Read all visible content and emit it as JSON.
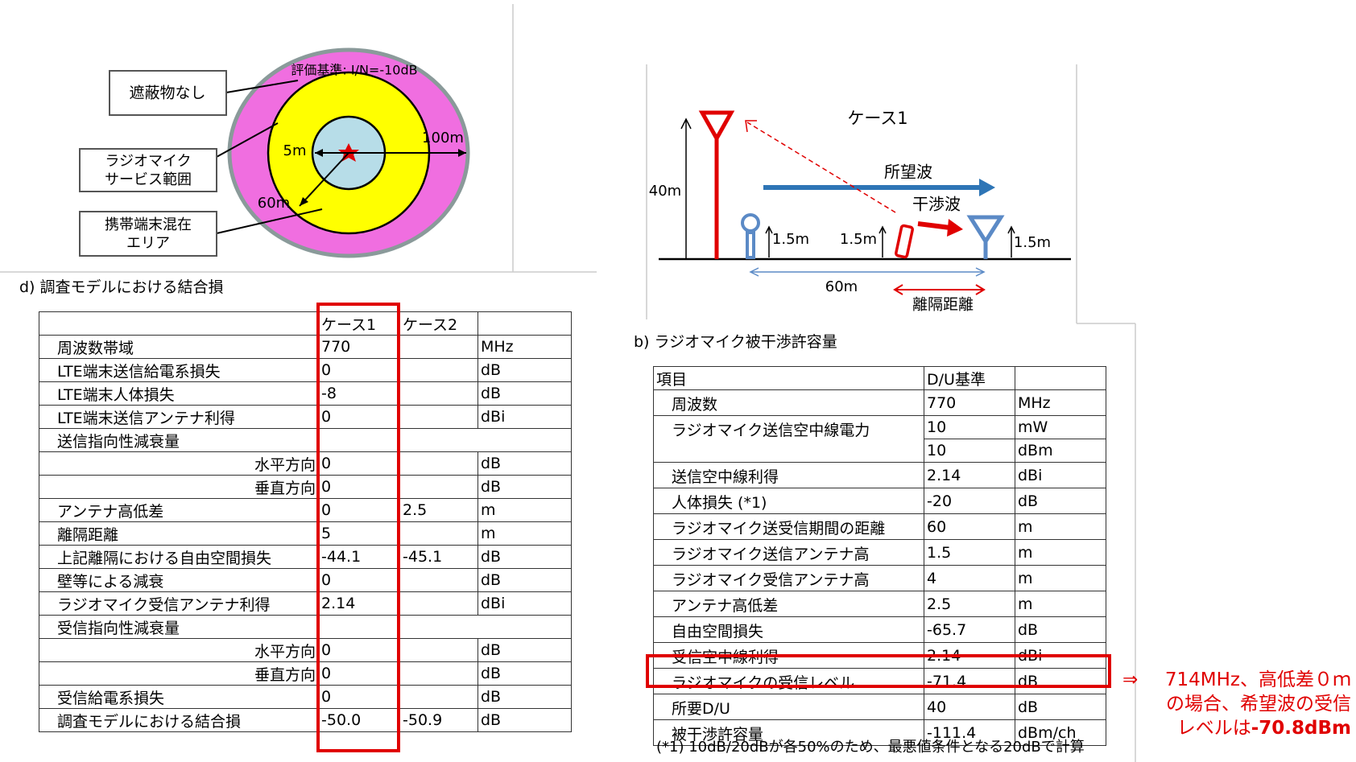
{
  "left_diagram": {
    "criterion": "評価基準: I/N=-10dB",
    "no_obstruction": "遮蔽物なし",
    "service_area": [
      "ラジオマイク",
      "サービス範囲"
    ],
    "mixed_area": [
      "携帯端末混在",
      "エリア"
    ],
    "radius_inner": "5m",
    "radius_middle": "60m",
    "radius_outer": "100m"
  },
  "left_caption": "d) 調査モデルにおける結合損",
  "table_d": {
    "headers": [
      "ケース1",
      "ケース2"
    ],
    "rows": [
      {
        "label": "周波数帯域",
        "case1": "770",
        "unit": "MHz"
      },
      {
        "label": "LTE端末送信給電系損失",
        "case1": "0",
        "unit": "dB"
      },
      {
        "label": "LTE端末人体損失",
        "case1": "-8",
        "unit": "dB"
      },
      {
        "label": "LTE端末送信アンテナ利得",
        "case1": "0",
        "unit": "dBi"
      },
      {
        "label": "送信指向性減衰量",
        "rows": [
          {
            "label": "水平方向",
            "case1": "0",
            "unit": "dB"
          },
          {
            "label": "垂直方向",
            "case1": "0",
            "unit": "dB"
          }
        ]
      },
      {
        "label": "アンテナ高低差",
        "case1": "0",
        "case2": "2.5",
        "unit": "m"
      },
      {
        "label": "離隔距離",
        "case1": "5",
        "unit": "m"
      },
      {
        "label": "上記離隔における自由空間損失",
        "case1": "-44.1",
        "case2": "-45.1",
        "unit": "dB"
      },
      {
        "label": "壁等による減衰",
        "case1": "0",
        "unit": "dB"
      },
      {
        "label": "ラジオマイク受信アンテナ利得",
        "case1": "2.14",
        "unit": "dBi"
      },
      {
        "label": "受信指向性減衰量",
        "rows": [
          {
            "label": "水平方向",
            "case1": "0",
            "unit": "dB"
          },
          {
            "label": "垂直方向",
            "case1": "0",
            "unit": "dB"
          }
        ]
      },
      {
        "label": "受信給電系損失",
        "case1": "0",
        "unit": "dB"
      },
      {
        "label": "調査モデルにおける結合損",
        "case1": "-50.0",
        "case2": "-50.9",
        "unit": "dB"
      }
    ]
  },
  "right_diagram": {
    "title": "ケース1",
    "height": "40m",
    "desired": "所望波",
    "interference": "干渉波",
    "mic_height": "1.5m",
    "phone_height": "1.5m",
    "rx_height": "1.5m",
    "distance": "60m",
    "separation": "離隔距離"
  },
  "right_caption": "b) ラジオマイク被干渉許容量",
  "table_b": {
    "headers": [
      "項目",
      "D/U基準"
    ],
    "rows": [
      {
        "label": "周波数",
        "values": [
          {
            "value": "770",
            "unit": "MHz"
          }
        ]
      },
      {
        "label": "ラジオマイク送信空中線電力",
        "values": [
          {
            "value": "10",
            "unit": "mW"
          },
          {
            "value": "10",
            "unit": "dBm"
          }
        ]
      },
      {
        "label": "送信空中線利得",
        "values": [
          {
            "value": "2.14",
            "unit": "dBi"
          }
        ]
      },
      {
        "label": "人体損失 (*1)",
        "values": [
          {
            "value": "-20",
            "unit": "dB"
          }
        ]
      },
      {
        "label": "ラジオマイク送受信期間の距離",
        "values": [
          {
            "value": "60",
            "unit": "m"
          }
        ]
      },
      {
        "label": "ラジオマイク送信アンテナ高",
        "values": [
          {
            "value": "1.5",
            "unit": "m"
          }
        ]
      },
      {
        "label": "ラジオマイク受信アンテナ高",
        "values": [
          {
            "value": "4",
            "unit": "m"
          }
        ]
      },
      {
        "label": "アンテナ高低差",
        "values": [
          {
            "value": "2.5",
            "unit": "m"
          }
        ]
      },
      {
        "label": "自由空間損失",
        "values": [
          {
            "value": "-65.7",
            "unit": "dB"
          }
        ]
      },
      {
        "label": "受信空中線利得",
        "values": [
          {
            "value": "2.14",
            "unit": "dBi"
          }
        ]
      },
      {
        "label": "ラジオマイクの受信レベル",
        "values": [
          {
            "value": "-71.4",
            "unit": "dB"
          }
        ]
      },
      {
        "label": "所要D/U",
        "values": [
          {
            "value": "40",
            "unit": "dB"
          }
        ]
      },
      {
        "label": "被干渉許容量",
        "values": [
          {
            "value": "-111.4",
            "unit": "dBm/ch"
          }
        ]
      }
    ],
    "footnote": "(*1) 10dB/20dBが各50%のため、最悪値条件となる20dBで計算"
  },
  "annotation": {
    "arrow": "⇒",
    "lines": [
      "714MHz、高低差０ｍ",
      "の場合、希望波の受信"
    ],
    "last_prefix": "レベルは",
    "last_bold": "-70.8dBm"
  }
}
